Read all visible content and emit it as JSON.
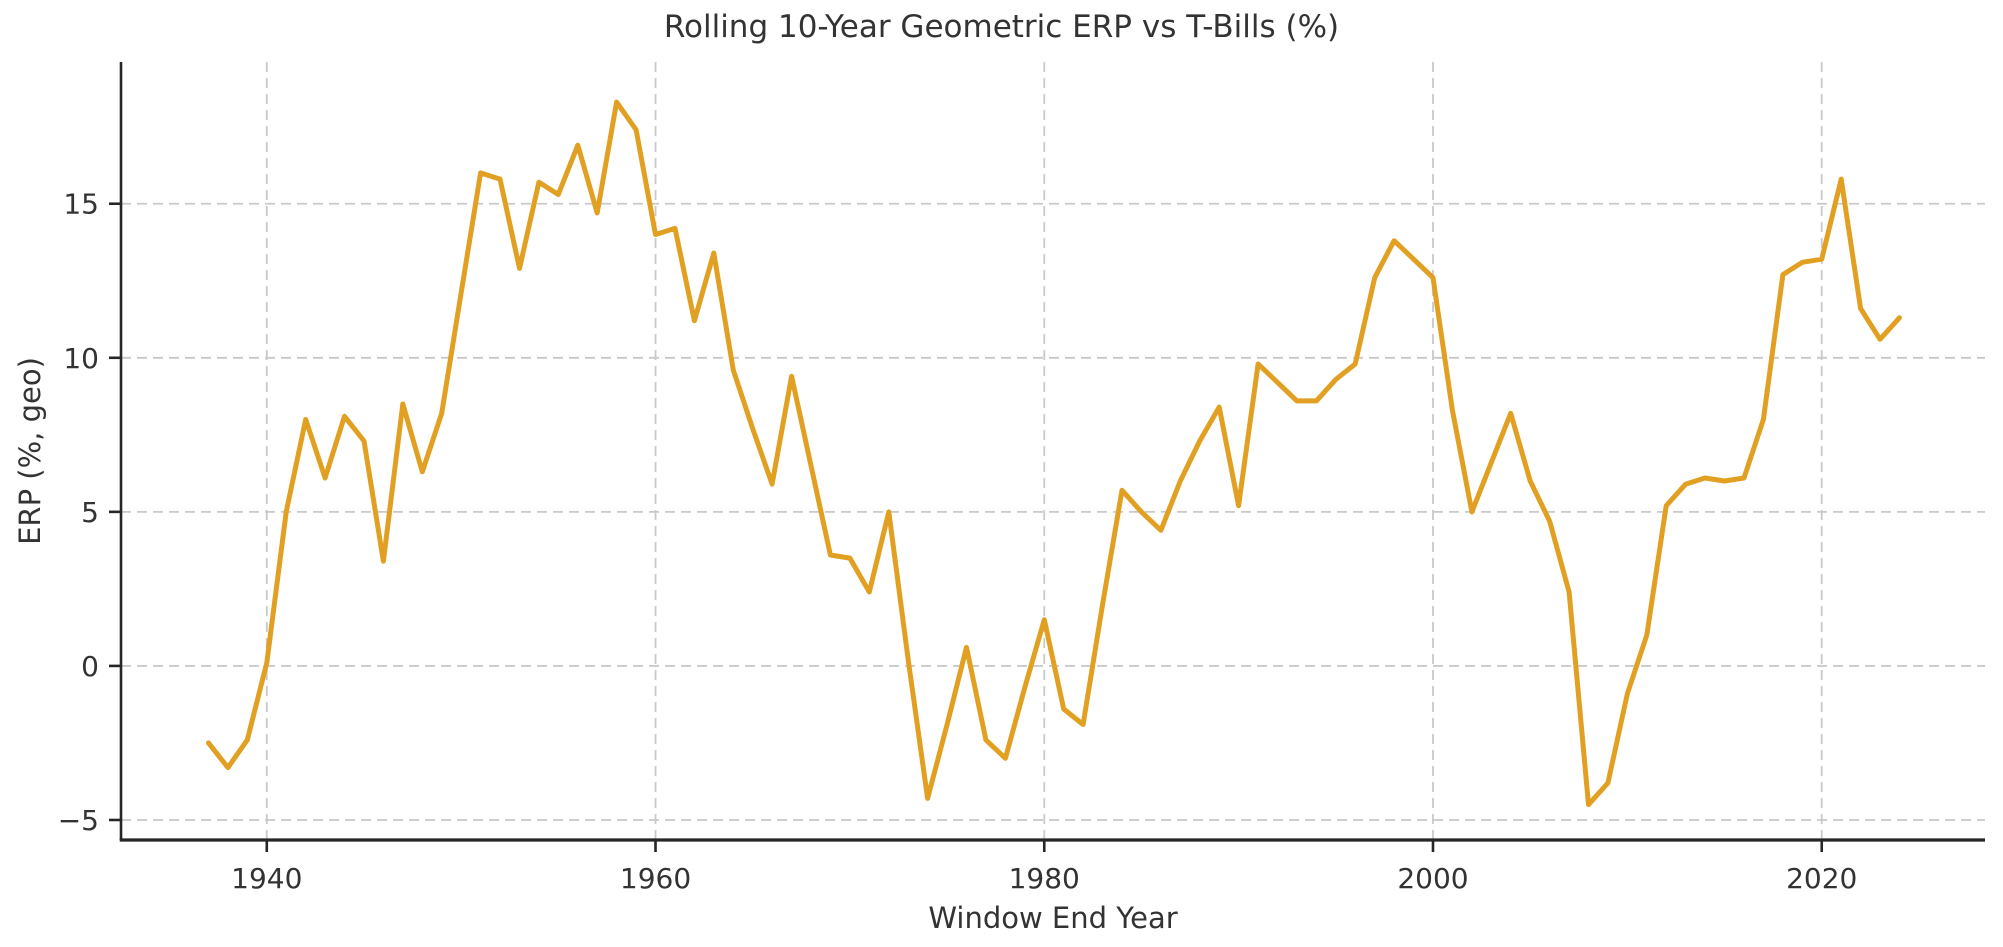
{
  "chart_data": {
    "type": "line",
    "title": "Rolling 10-Year Geometric ERP vs T-Bills (%)",
    "xlabel": "Window End Year",
    "ylabel": "ERP (%, geo)",
    "grid": true,
    "legend_position": "none",
    "grid_color": "#c9c9c9",
    "spine_color": "#262626",
    "tick_label_color": "#333333",
    "xlim": [
      1932.5,
      2028.4
    ],
    "ylim": [
      -5.65,
      19.6
    ],
    "x_ticks": [
      1940,
      1960,
      1980,
      2000,
      2020
    ],
    "y_ticks": [
      -5,
      0,
      5,
      10,
      15
    ],
    "series": [
      {
        "name": "Rolling 10-year geometric ERP vs T-Bills",
        "color": "#E2A023",
        "x": [
          1937,
          1938,
          1939,
          1940,
          1941,
          1942,
          1943,
          1944,
          1945,
          1946,
          1947,
          1948,
          1949,
          1950,
          1951,
          1952,
          1953,
          1954,
          1955,
          1956,
          1957,
          1958,
          1959,
          1960,
          1961,
          1962,
          1963,
          1964,
          1965,
          1966,
          1967,
          1968,
          1969,
          1970,
          1971,
          1972,
          1973,
          1974,
          1975,
          1976,
          1977,
          1978,
          1979,
          1980,
          1981,
          1982,
          1983,
          1984,
          1985,
          1986,
          1987,
          1988,
          1989,
          1990,
          1991,
          1992,
          1993,
          1994,
          1995,
          1996,
          1997,
          1998,
          1999,
          2000,
          2001,
          2002,
          2003,
          2004,
          2005,
          2006,
          2007,
          2008,
          2009,
          2010,
          2011,
          2012,
          2013,
          2014,
          2015,
          2016,
          2017,
          2018,
          2019,
          2020,
          2021,
          2022,
          2023,
          2024
        ],
        "values": [
          -2.5,
          -3.3,
          -2.4,
          0.1,
          5.0,
          8.0,
          6.1,
          8.1,
          7.3,
          3.4,
          8.5,
          6.3,
          8.2,
          12.1,
          16.0,
          15.8,
          12.9,
          15.7,
          15.3,
          16.9,
          14.7,
          18.3,
          17.4,
          14.0,
          14.2,
          11.2,
          13.4,
          9.6,
          7.7,
          5.9,
          9.4,
          6.5,
          3.6,
          3.5,
          2.4,
          5.0,
          0.2,
          -4.3,
          -1.9,
          0.6,
          -2.4,
          -3.0,
          -0.7,
          1.5,
          -1.4,
          -1.9,
          2.0,
          5.7,
          5.0,
          4.4,
          6.0,
          7.3,
          8.4,
          5.2,
          9.8,
          9.2,
          8.6,
          8.6,
          9.3,
          9.8,
          12.6,
          13.8,
          13.2,
          12.6,
          8.3,
          5.0,
          6.6,
          8.2,
          6.0,
          4.7,
          2.4,
          -4.5,
          -3.8,
          -0.9,
          1.0,
          5.2,
          5.9,
          6.1,
          6.0,
          6.1,
          8.0,
          12.7,
          13.1,
          13.2,
          15.8,
          11.6,
          10.6,
          11.3
        ]
      }
    ]
  }
}
